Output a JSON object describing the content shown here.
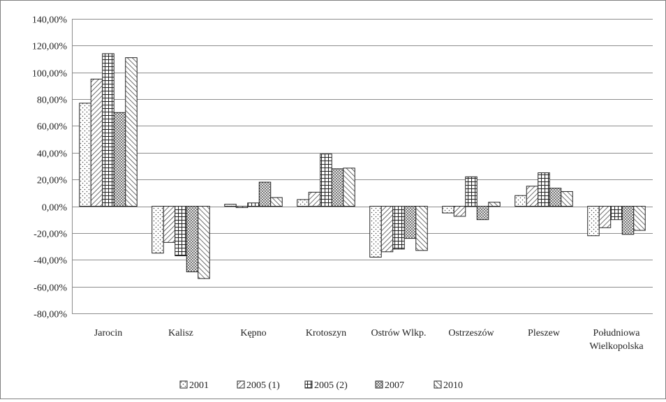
{
  "chart_data": {
    "type": "bar",
    "title": "",
    "xlabel": "",
    "ylabel": "",
    "ylim": [
      -80,
      140
    ],
    "ytick_step": 20,
    "ytick_labels": [
      "140,00%",
      "120,00%",
      "100,00%",
      "80,00%",
      "60,00%",
      "40,00%",
      "20,00%",
      "0,00%",
      "-20,00%",
      "-40,00%",
      "-60,00%",
      "-80,00%"
    ],
    "grid": true,
    "legend_position": "bottom",
    "categories": [
      "Jarocin",
      "Kalisz",
      "Kępno",
      "Krotoszyn",
      "Ostrów Wlkp.",
      "Ostrzeszów",
      "Pleszew",
      "Południowa Wielkopolska"
    ],
    "series": [
      {
        "name": "2001",
        "pattern": "dots",
        "values": [
          77,
          -35,
          1.5,
          5,
          -38,
          -5,
          8,
          -22
        ]
      },
      {
        "name": "2005 (1)",
        "pattern": "diagonal",
        "values": [
          95,
          -27,
          -1,
          10.5,
          -34,
          -7.5,
          15,
          -16
        ]
      },
      {
        "name": "2005 (2)",
        "pattern": "grid",
        "values": [
          114,
          -37,
          2.5,
          39,
          -32,
          22,
          25,
          -10
        ]
      },
      {
        "name": "2007",
        "pattern": "crosshatch",
        "values": [
          70,
          -49,
          18,
          28,
          -24,
          -10,
          13.5,
          -21
        ]
      },
      {
        "name": "2010",
        "pattern": "backdiagonal",
        "values": [
          111,
          -54,
          6.5,
          28.5,
          -33,
          3,
          11,
          -18
        ]
      }
    ]
  }
}
